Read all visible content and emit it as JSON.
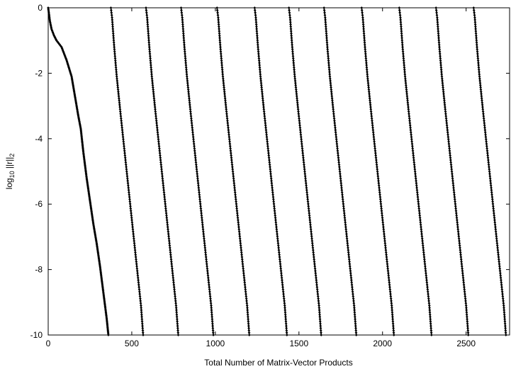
{
  "chart_data": {
    "type": "line",
    "xlabel": "Total Number of Matrix-Vector Products",
    "ylabel": {
      "prefix": "log",
      "sub1": "10",
      "mid": " ||r||",
      "sub2": "2"
    },
    "xlim": [
      0,
      2760
    ],
    "ylim": [
      -10,
      0
    ],
    "xticks": [
      0,
      500,
      1000,
      1500,
      2000,
      2500
    ],
    "yticks": [
      0,
      -2,
      -4,
      -6,
      -8,
      -10
    ],
    "grid": false,
    "legend": false,
    "marker": "diamond",
    "color": "#000000",
    "series": [
      {
        "x": [
          0,
          10,
          20,
          35,
          50,
          80,
          110,
          140,
          160,
          180,
          195,
          210,
          230,
          250,
          270,
          290,
          310,
          330,
          350,
          360
        ],
        "y": [
          0,
          -0.4,
          -0.65,
          -0.85,
          -1.0,
          -1.2,
          -1.6,
          -2.1,
          -2.7,
          -3.3,
          -3.7,
          -4.4,
          -5.2,
          -5.9,
          -6.6,
          -7.2,
          -7.9,
          -8.7,
          -9.5,
          -10
        ]
      },
      {
        "x": [
          375,
          382,
          395,
          410,
          430,
          455,
          480,
          505,
          530,
          555,
          568
        ],
        "y": [
          0,
          -0.3,
          -1.2,
          -2.1,
          -3.1,
          -4.3,
          -5.5,
          -6.7,
          -7.9,
          -9.1,
          -10
        ]
      },
      {
        "x": [
          585,
          592,
          605,
          620,
          640,
          665,
          690,
          715,
          740,
          765,
          778
        ],
        "y": [
          0,
          -0.3,
          -1.2,
          -2.1,
          -3.1,
          -4.3,
          -5.5,
          -6.7,
          -7.9,
          -9.1,
          -10
        ]
      },
      {
        "x": [
          795,
          802,
          815,
          830,
          850,
          875,
          900,
          925,
          950,
          975,
          988
        ],
        "y": [
          0,
          -0.3,
          -1.2,
          -2.1,
          -3.1,
          -4.3,
          -5.5,
          -6.7,
          -7.9,
          -9.1,
          -10
        ]
      },
      {
        "x": [
          1010,
          1017,
          1030,
          1045,
          1065,
          1090,
          1115,
          1140,
          1165,
          1190,
          1203
        ],
        "y": [
          0,
          -0.3,
          -1.2,
          -2.1,
          -3.1,
          -4.3,
          -5.5,
          -6.7,
          -7.9,
          -9.1,
          -10
        ]
      },
      {
        "x": [
          1235,
          1242,
          1255,
          1270,
          1290,
          1315,
          1340,
          1365,
          1390,
          1415,
          1428
        ],
        "y": [
          0,
          -0.3,
          -1.2,
          -2.1,
          -3.1,
          -4.3,
          -5.5,
          -6.7,
          -7.9,
          -9.1,
          -10
        ]
      },
      {
        "x": [
          1440,
          1447,
          1460,
          1475,
          1495,
          1520,
          1545,
          1570,
          1595,
          1620,
          1633
        ],
        "y": [
          0,
          -0.3,
          -1.2,
          -2.1,
          -3.1,
          -4.3,
          -5.5,
          -6.7,
          -7.9,
          -9.1,
          -10
        ]
      },
      {
        "x": [
          1650,
          1657,
          1670,
          1685,
          1705,
          1730,
          1755,
          1780,
          1805,
          1830,
          1843
        ],
        "y": [
          0,
          -0.3,
          -1.2,
          -2.1,
          -3.1,
          -4.3,
          -5.5,
          -6.7,
          -7.9,
          -9.1,
          -10
        ]
      },
      {
        "x": [
          1875,
          1882,
          1895,
          1910,
          1930,
          1955,
          1980,
          2005,
          2030,
          2055,
          2068
        ],
        "y": [
          0,
          -0.3,
          -1.2,
          -2.1,
          -3.1,
          -4.3,
          -5.5,
          -6.7,
          -7.9,
          -9.1,
          -10
        ]
      },
      {
        "x": [
          2100,
          2107,
          2120,
          2135,
          2155,
          2180,
          2205,
          2230,
          2255,
          2280,
          2293
        ],
        "y": [
          0,
          -0.3,
          -1.2,
          -2.1,
          -3.1,
          -4.3,
          -5.5,
          -6.7,
          -7.9,
          -9.1,
          -10
        ]
      },
      {
        "x": [
          2320,
          2327,
          2340,
          2355,
          2375,
          2400,
          2425,
          2450,
          2475,
          2500,
          2513
        ],
        "y": [
          0,
          -0.3,
          -1.2,
          -2.1,
          -3.1,
          -4.3,
          -5.5,
          -6.7,
          -7.9,
          -9.1,
          -10
        ]
      },
      {
        "x": [
          2545,
          2552,
          2565,
          2580,
          2600,
          2625,
          2650,
          2675,
          2700,
          2725,
          2738
        ],
        "y": [
          0,
          -0.3,
          -1.2,
          -2.1,
          -3.1,
          -4.3,
          -5.5,
          -6.7,
          -7.9,
          -9.1,
          -10
        ]
      }
    ]
  }
}
